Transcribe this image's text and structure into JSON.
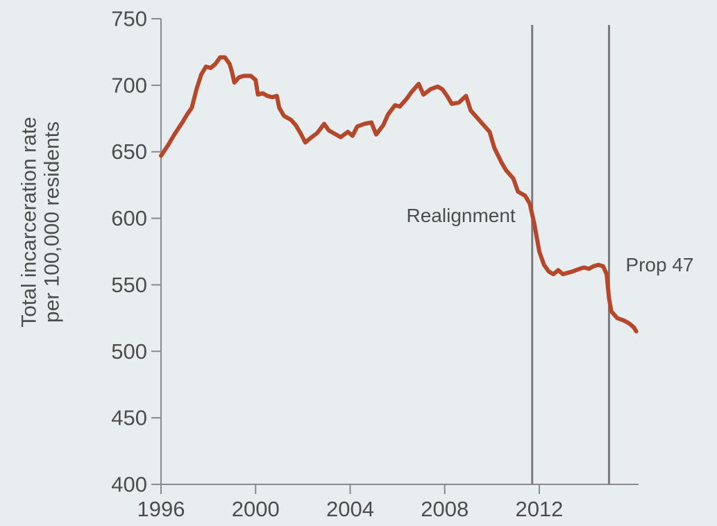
{
  "chart_data": {
    "type": "line",
    "title": "",
    "xlabel": "",
    "ylabel": "Total incarceration rate per 100,000 residents",
    "ylabel_lines": [
      "Total incarceration rate",
      "per 100,000 residents"
    ],
    "xlim": [
      1996,
      2016.2
    ],
    "ylim": [
      400,
      750
    ],
    "x_ticks": [
      1996,
      2000,
      2004,
      2008,
      2012
    ],
    "y_ticks": [
      400,
      450,
      500,
      550,
      600,
      650,
      700,
      750
    ],
    "grid": false,
    "legend": "none",
    "series": [
      {
        "color": "#b5472b",
        "points": [
          [
            1996.0,
            647
          ],
          [
            1996.3,
            655
          ],
          [
            1996.6,
            664
          ],
          [
            1996.9,
            672
          ],
          [
            1997.1,
            678
          ],
          [
            1997.3,
            683
          ],
          [
            1997.5,
            697
          ],
          [
            1997.7,
            708
          ],
          [
            1997.9,
            714
          ],
          [
            1998.1,
            713
          ],
          [
            1998.3,
            716
          ],
          [
            1998.5,
            721
          ],
          [
            1998.7,
            721
          ],
          [
            1998.9,
            716
          ],
          [
            1999.0,
            710
          ],
          [
            1999.1,
            702
          ],
          [
            1999.3,
            706
          ],
          [
            1999.5,
            707
          ],
          [
            1999.8,
            707
          ],
          [
            2000.0,
            704
          ],
          [
            2000.1,
            693
          ],
          [
            2000.3,
            694
          ],
          [
            2000.5,
            692
          ],
          [
            2000.7,
            691
          ],
          [
            2000.9,
            692
          ],
          [
            2001.0,
            683
          ],
          [
            2001.2,
            677
          ],
          [
            2001.5,
            674
          ],
          [
            2001.7,
            670
          ],
          [
            2001.9,
            664
          ],
          [
            2002.1,
            657
          ],
          [
            2002.3,
            660
          ],
          [
            2002.6,
            664
          ],
          [
            2002.9,
            671
          ],
          [
            2003.1,
            666
          ],
          [
            2003.4,
            663
          ],
          [
            2003.6,
            661
          ],
          [
            2003.9,
            665
          ],
          [
            2004.1,
            662
          ],
          [
            2004.3,
            669
          ],
          [
            2004.6,
            671
          ],
          [
            2004.9,
            672
          ],
          [
            2005.1,
            663
          ],
          [
            2005.4,
            670
          ],
          [
            2005.6,
            678
          ],
          [
            2005.9,
            685
          ],
          [
            2006.1,
            684
          ],
          [
            2006.4,
            690
          ],
          [
            2006.6,
            695
          ],
          [
            2006.9,
            701
          ],
          [
            2007.1,
            693
          ],
          [
            2007.4,
            697
          ],
          [
            2007.7,
            699
          ],
          [
            2007.9,
            697
          ],
          [
            2008.1,
            692
          ],
          [
            2008.3,
            686
          ],
          [
            2008.6,
            687
          ],
          [
            2008.9,
            692
          ],
          [
            2009.1,
            681
          ],
          [
            2009.4,
            675
          ],
          [
            2009.6,
            671
          ],
          [
            2009.9,
            665
          ],
          [
            2010.1,
            653
          ],
          [
            2010.4,
            642
          ],
          [
            2010.6,
            636
          ],
          [
            2010.9,
            630
          ],
          [
            2011.1,
            620
          ],
          [
            2011.4,
            617
          ],
          [
            2011.6,
            611
          ],
          [
            2011.8,
            595
          ],
          [
            2011.9,
            585
          ],
          [
            2012.0,
            575
          ],
          [
            2012.2,
            565
          ],
          [
            2012.4,
            560
          ],
          [
            2012.6,
            558
          ],
          [
            2012.8,
            561
          ],
          [
            2013.0,
            558
          ],
          [
            2013.2,
            559
          ],
          [
            2013.4,
            560
          ],
          [
            2013.7,
            562
          ],
          [
            2013.9,
            563
          ],
          [
            2014.1,
            562
          ],
          [
            2014.3,
            564
          ],
          [
            2014.5,
            565
          ],
          [
            2014.7,
            564
          ],
          [
            2014.85,
            558
          ],
          [
            2014.95,
            540
          ],
          [
            2015.05,
            530
          ],
          [
            2015.3,
            525
          ],
          [
            2015.6,
            523
          ],
          [
            2015.8,
            521
          ],
          [
            2016.0,
            518
          ],
          [
            2016.1,
            515
          ]
        ]
      }
    ],
    "annotations": [
      {
        "label": "Realignment",
        "x": 2011.7,
        "label_y": 602,
        "anchor": "end"
      },
      {
        "label": "Prop 47",
        "x": 2014.95,
        "label_y": 565,
        "anchor": "start"
      }
    ]
  }
}
